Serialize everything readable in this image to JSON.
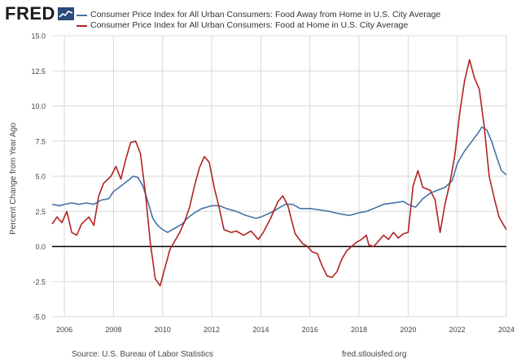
{
  "header": {
    "logo_text": "FRED",
    "logo_icon": "fred-chart-icon"
  },
  "chart_data": {
    "type": "line",
    "title": "",
    "xlabel": "",
    "ylabel": "Percent Change from Year Ago",
    "xlim": [
      2005.5,
      2024.0
    ],
    "ylim": [
      -5.0,
      15.0
    ],
    "yticks": [
      "15.0",
      "12.5",
      "10.0",
      "7.5",
      "5.0",
      "2.5",
      "0.0",
      "-2.5",
      "-5.0"
    ],
    "ytick_values": [
      15,
      12.5,
      10,
      7.5,
      5,
      2.5,
      0,
      -2.5,
      -5
    ],
    "xticks": [
      "2006",
      "2008",
      "2010",
      "2012",
      "2014",
      "2016",
      "2018",
      "2020",
      "2022",
      "2024"
    ],
    "xtick_values": [
      2006,
      2008,
      2010,
      2012,
      2014,
      2016,
      2018,
      2020,
      2022,
      2024
    ],
    "recessions": [
      [
        2007.92,
        2009.42
      ],
      [
        2020.08,
        2020.33
      ]
    ],
    "zero_line": 0,
    "series": [
      {
        "name": "Consumer Price Index for All Urban Consumers: Food Away from Home in U.S. City Average",
        "color": "#4572a7",
        "points": [
          [
            2005.5,
            3.0
          ],
          [
            2005.8,
            2.9
          ],
          [
            2006.0,
            3.0
          ],
          [
            2006.3,
            3.1
          ],
          [
            2006.6,
            3.0
          ],
          [
            2006.9,
            3.1
          ],
          [
            2007.2,
            3.0
          ],
          [
            2007.5,
            3.3
          ],
          [
            2007.8,
            3.4
          ],
          [
            2008.0,
            3.9
          ],
          [
            2008.3,
            4.3
          ],
          [
            2008.6,
            4.7
          ],
          [
            2008.8,
            5.0
          ],
          [
            2009.0,
            4.9
          ],
          [
            2009.2,
            4.3
          ],
          [
            2009.4,
            3.2
          ],
          [
            2009.6,
            2.0
          ],
          [
            2009.8,
            1.5
          ],
          [
            2010.0,
            1.2
          ],
          [
            2010.2,
            1.0
          ],
          [
            2010.5,
            1.3
          ],
          [
            2010.8,
            1.6
          ],
          [
            2011.0,
            2.0
          ],
          [
            2011.3,
            2.4
          ],
          [
            2011.6,
            2.7
          ],
          [
            2012.0,
            2.9
          ],
          [
            2012.3,
            2.9
          ],
          [
            2012.6,
            2.7
          ],
          [
            2013.0,
            2.5
          ],
          [
            2013.4,
            2.2
          ],
          [
            2013.8,
            2.0
          ],
          [
            2014.0,
            2.1
          ],
          [
            2014.4,
            2.4
          ],
          [
            2014.8,
            2.8
          ],
          [
            2015.0,
            3.0
          ],
          [
            2015.3,
            3.0
          ],
          [
            2015.6,
            2.7
          ],
          [
            2016.0,
            2.7
          ],
          [
            2016.4,
            2.6
          ],
          [
            2016.8,
            2.5
          ],
          [
            2017.0,
            2.4
          ],
          [
            2017.3,
            2.3
          ],
          [
            2017.6,
            2.2
          ],
          [
            2018.0,
            2.4
          ],
          [
            2018.3,
            2.5
          ],
          [
            2018.6,
            2.7
          ],
          [
            2019.0,
            3.0
          ],
          [
            2019.4,
            3.1
          ],
          [
            2019.8,
            3.2
          ],
          [
            2020.0,
            3.0
          ],
          [
            2020.3,
            2.8
          ],
          [
            2020.6,
            3.4
          ],
          [
            2020.9,
            3.8
          ],
          [
            2021.2,
            4.0
          ],
          [
            2021.5,
            4.2
          ],
          [
            2021.8,
            4.7
          ],
          [
            2022.0,
            5.9
          ],
          [
            2022.3,
            6.8
          ],
          [
            2022.6,
            7.5
          ],
          [
            2022.9,
            8.2
          ],
          [
            2023.0,
            8.5
          ],
          [
            2023.2,
            8.3
          ],
          [
            2023.4,
            7.5
          ],
          [
            2023.6,
            6.4
          ],
          [
            2023.8,
            5.4
          ],
          [
            2024.0,
            5.1
          ]
        ]
      },
      {
        "name": "Consumer Price Index for All Urban Consumers: Food at Home in U.S. City Average",
        "color": "#b22222",
        "points": [
          [
            2005.5,
            1.6
          ],
          [
            2005.7,
            2.1
          ],
          [
            2005.9,
            1.7
          ],
          [
            2006.1,
            2.5
          ],
          [
            2006.3,
            1.0
          ],
          [
            2006.5,
            0.8
          ],
          [
            2006.7,
            1.6
          ],
          [
            2007.0,
            2.1
          ],
          [
            2007.2,
            1.5
          ],
          [
            2007.4,
            3.6
          ],
          [
            2007.6,
            4.5
          ],
          [
            2007.9,
            5.0
          ],
          [
            2008.1,
            5.7
          ],
          [
            2008.3,
            4.8
          ],
          [
            2008.5,
            6.2
          ],
          [
            2008.7,
            7.4
          ],
          [
            2008.9,
            7.5
          ],
          [
            2009.1,
            6.6
          ],
          [
            2009.3,
            3.8
          ],
          [
            2009.5,
            0.3
          ],
          [
            2009.7,
            -2.3
          ],
          [
            2009.9,
            -2.8
          ],
          [
            2010.1,
            -1.5
          ],
          [
            2010.3,
            -0.2
          ],
          [
            2010.5,
            0.4
          ],
          [
            2010.7,
            1.0
          ],
          [
            2010.9,
            1.8
          ],
          [
            2011.1,
            2.8
          ],
          [
            2011.3,
            4.3
          ],
          [
            2011.5,
            5.6
          ],
          [
            2011.7,
            6.4
          ],
          [
            2011.9,
            6.0
          ],
          [
            2012.1,
            4.2
          ],
          [
            2012.3,
            2.8
          ],
          [
            2012.5,
            1.2
          ],
          [
            2012.8,
            1.0
          ],
          [
            2013.0,
            1.1
          ],
          [
            2013.3,
            0.8
          ],
          [
            2013.6,
            1.1
          ],
          [
            2013.9,
            0.5
          ],
          [
            2014.1,
            1.0
          ],
          [
            2014.4,
            2.0
          ],
          [
            2014.7,
            3.2
          ],
          [
            2014.9,
            3.6
          ],
          [
            2015.1,
            2.9
          ],
          [
            2015.4,
            0.9
          ],
          [
            2015.7,
            0.2
          ],
          [
            2015.9,
            0.0
          ],
          [
            2016.1,
            -0.4
          ],
          [
            2016.3,
            -0.5
          ],
          [
            2016.5,
            -1.4
          ],
          [
            2016.7,
            -2.1
          ],
          [
            2016.9,
            -2.2
          ],
          [
            2017.1,
            -1.8
          ],
          [
            2017.3,
            -0.9
          ],
          [
            2017.5,
            -0.3
          ],
          [
            2017.7,
            0.0
          ],
          [
            2017.9,
            0.3
          ],
          [
            2018.1,
            0.5
          ],
          [
            2018.3,
            0.8
          ],
          [
            2018.4,
            0.1
          ],
          [
            2018.6,
            0.0
          ],
          [
            2018.8,
            0.4
          ],
          [
            2019.0,
            0.8
          ],
          [
            2019.2,
            0.5
          ],
          [
            2019.4,
            1.0
          ],
          [
            2019.6,
            0.6
          ],
          [
            2019.8,
            0.9
          ],
          [
            2020.0,
            1.0
          ],
          [
            2020.2,
            4.3
          ],
          [
            2020.4,
            5.4
          ],
          [
            2020.6,
            4.2
          ],
          [
            2020.9,
            4.0
          ],
          [
            2021.1,
            3.3
          ],
          [
            2021.3,
            1.0
          ],
          [
            2021.5,
            3.0
          ],
          [
            2021.7,
            4.5
          ],
          [
            2021.9,
            6.5
          ],
          [
            2022.1,
            9.5
          ],
          [
            2022.3,
            11.8
          ],
          [
            2022.5,
            13.3
          ],
          [
            2022.7,
            12.0
          ],
          [
            2022.9,
            11.2
          ],
          [
            2023.1,
            8.5
          ],
          [
            2023.3,
            5.0
          ],
          [
            2023.5,
            3.5
          ],
          [
            2023.7,
            2.1
          ],
          [
            2023.9,
            1.5
          ],
          [
            2024.0,
            1.2
          ]
        ]
      }
    ]
  },
  "footer": {
    "source": "Source: U.S. Bureau of Labor Statistics",
    "url": "fred.stlouisfed.org"
  },
  "colors": {
    "blue_series": "#4572a7",
    "red_series": "#b22222",
    "recession_band": "#e0e0e0",
    "grid": "#d9d9d9",
    "zero_line": "#000000"
  }
}
